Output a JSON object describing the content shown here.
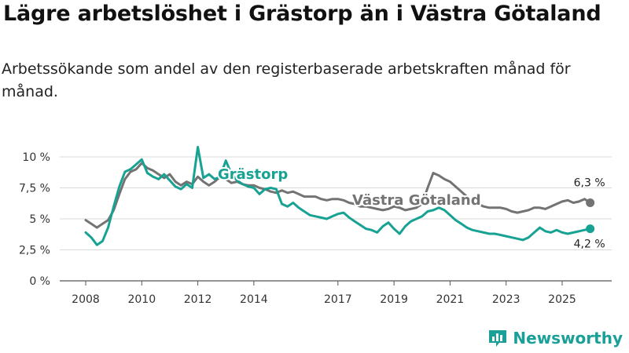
{
  "title": "Lägre arbetslöshet i Grästorp än i Västra Götaland",
  "subtitle": "Arbetssökande som andel av den registerbaserade arbetskraften månad för månad.",
  "brand": "Newsworthy",
  "colors": {
    "grastorp": "#17a293",
    "vastra": "#737373",
    "grid": "#d9d9d9",
    "brand": "#1aa098"
  },
  "chart_data": {
    "type": "line",
    "title": "",
    "xlabel": "",
    "ylabel": "",
    "xlim": [
      2008.0,
      2026.0
    ],
    "ylim": [
      0,
      10
    ],
    "y_ticks": [
      {
        "value": 0,
        "label": "0 %"
      },
      {
        "value": 2.5,
        "label": "2,5 %"
      },
      {
        "value": 5,
        "label": "5 %"
      },
      {
        "value": 7.5,
        "label": "7,5 %"
      },
      {
        "value": 10,
        "label": "10 %"
      }
    ],
    "x_ticks": [
      {
        "value": 2008,
        "label": "2008"
      },
      {
        "value": 2010,
        "label": "2010"
      },
      {
        "value": 2012,
        "label": "2012"
      },
      {
        "value": 2014,
        "label": "2014"
      },
      {
        "value": 2017,
        "label": "2017"
      },
      {
        "value": 2019,
        "label": "2019"
      },
      {
        "value": 2021,
        "label": "2021"
      },
      {
        "value": 2023,
        "label": "2023"
      },
      {
        "value": 2025,
        "label": "2025"
      }
    ],
    "series": [
      {
        "name": "Västra Götaland",
        "label": "Västra Götaland",
        "end_label": "6,3 %",
        "x": [
          2008.0,
          2008.2,
          2008.4,
          2008.6,
          2008.8,
          2009.0,
          2009.2,
          2009.4,
          2009.6,
          2009.8,
          2010.0,
          2010.2,
          2010.4,
          2010.6,
          2010.8,
          2011.0,
          2011.2,
          2011.4,
          2011.6,
          2011.8,
          2012.0,
          2012.2,
          2012.4,
          2012.6,
          2012.8,
          2013.0,
          2013.2,
          2013.4,
          2013.6,
          2013.8,
          2014.0,
          2014.2,
          2014.4,
          2014.6,
          2014.8,
          2015.0,
          2015.2,
          2015.4,
          2015.6,
          2015.8,
          2016.0,
          2016.2,
          2016.4,
          2016.6,
          2016.8,
          2017.0,
          2017.2,
          2017.4,
          2017.6,
          2017.8,
          2018.0,
          2018.2,
          2018.4,
          2018.6,
          2018.8,
          2019.0,
          2019.2,
          2019.4,
          2019.6,
          2019.8,
          2020.0,
          2020.2,
          2020.4,
          2020.6,
          2020.8,
          2021.0,
          2021.2,
          2021.4,
          2021.6,
          2021.8,
          2022.0,
          2022.2,
          2022.4,
          2022.6,
          2022.8,
          2023.0,
          2023.2,
          2023.4,
          2023.6,
          2023.8,
          2024.0,
          2024.2,
          2024.4,
          2024.6,
          2024.8,
          2025.0,
          2025.2,
          2025.4,
          2025.6,
          2025.8,
          2026.0
        ],
        "values": [
          4.9,
          4.6,
          4.3,
          4.6,
          4.9,
          5.7,
          7.0,
          8.2,
          8.8,
          9.0,
          9.5,
          9.1,
          8.9,
          8.6,
          8.3,
          8.6,
          8.0,
          7.7,
          8.0,
          7.8,
          8.4,
          8.0,
          7.7,
          8.0,
          8.4,
          8.2,
          7.9,
          8.0,
          7.8,
          7.7,
          7.7,
          7.5,
          7.4,
          7.2,
          7.1,
          7.3,
          7.1,
          7.2,
          7.0,
          6.8,
          6.8,
          6.8,
          6.6,
          6.5,
          6.6,
          6.6,
          6.5,
          6.3,
          6.2,
          6.0,
          6.0,
          5.9,
          5.8,
          5.7,
          5.8,
          6.0,
          5.9,
          5.7,
          5.8,
          5.9,
          6.2,
          7.5,
          8.7,
          8.5,
          8.2,
          8.0,
          7.6,
          7.2,
          6.8,
          6.4,
          6.2,
          6.0,
          5.9,
          5.9,
          5.9,
          5.8,
          5.6,
          5.5,
          5.6,
          5.7,
          5.9,
          5.9,
          5.8,
          6.0,
          6.2,
          6.4,
          6.5,
          6.3,
          6.4,
          6.6,
          6.3
        ]
      },
      {
        "name": "Grästorp",
        "label": "Grästorp",
        "end_label": "4,2 %",
        "x": [
          2008.0,
          2008.2,
          2008.4,
          2008.6,
          2008.8,
          2009.0,
          2009.2,
          2009.4,
          2009.6,
          2009.8,
          2010.0,
          2010.2,
          2010.4,
          2010.6,
          2010.8,
          2011.0,
          2011.2,
          2011.4,
          2011.6,
          2011.8,
          2012.0,
          2012.2,
          2012.4,
          2012.6,
          2012.8,
          2013.0,
          2013.2,
          2013.4,
          2013.6,
          2013.8,
          2014.0,
          2014.2,
          2014.4,
          2014.6,
          2014.8,
          2015.0,
          2015.2,
          2015.4,
          2015.6,
          2015.8,
          2016.0,
          2016.2,
          2016.4,
          2016.6,
          2016.8,
          2017.0,
          2017.2,
          2017.4,
          2017.6,
          2017.8,
          2018.0,
          2018.2,
          2018.4,
          2018.6,
          2018.8,
          2019.0,
          2019.2,
          2019.4,
          2019.6,
          2019.8,
          2020.0,
          2020.2,
          2020.4,
          2020.6,
          2020.8,
          2021.0,
          2021.2,
          2021.4,
          2021.6,
          2021.8,
          2022.0,
          2022.2,
          2022.4,
          2022.6,
          2022.8,
          2023.0,
          2023.2,
          2023.4,
          2023.6,
          2023.8,
          2024.0,
          2024.2,
          2024.4,
          2024.6,
          2024.8,
          2025.0,
          2025.2,
          2025.4,
          2025.6,
          2025.8,
          2026.0
        ],
        "values": [
          3.9,
          3.5,
          2.9,
          3.2,
          4.3,
          6.0,
          7.6,
          8.8,
          9.0,
          9.4,
          9.8,
          8.7,
          8.4,
          8.2,
          8.6,
          8.1,
          7.6,
          7.4,
          7.8,
          7.5,
          10.8,
          8.3,
          8.6,
          8.2,
          8.4,
          9.7,
          8.6,
          8.1,
          7.8,
          7.6,
          7.5,
          7.0,
          7.4,
          7.5,
          7.4,
          6.2,
          6.0,
          6.3,
          5.9,
          5.6,
          5.3,
          5.2,
          5.1,
          5.0,
          5.2,
          5.4,
          5.5,
          5.1,
          4.8,
          4.5,
          4.2,
          4.1,
          3.9,
          4.4,
          4.7,
          4.2,
          3.8,
          4.4,
          4.8,
          5.0,
          5.2,
          5.6,
          5.7,
          5.9,
          5.7,
          5.3,
          4.9,
          4.6,
          4.3,
          4.1,
          4.0,
          3.9,
          3.8,
          3.8,
          3.7,
          3.6,
          3.5,
          3.4,
          3.3,
          3.5,
          3.9,
          4.3,
          4.0,
          3.9,
          4.1,
          3.9,
          3.8,
          3.9,
          4.0,
          4.1,
          4.2
        ]
      }
    ]
  }
}
